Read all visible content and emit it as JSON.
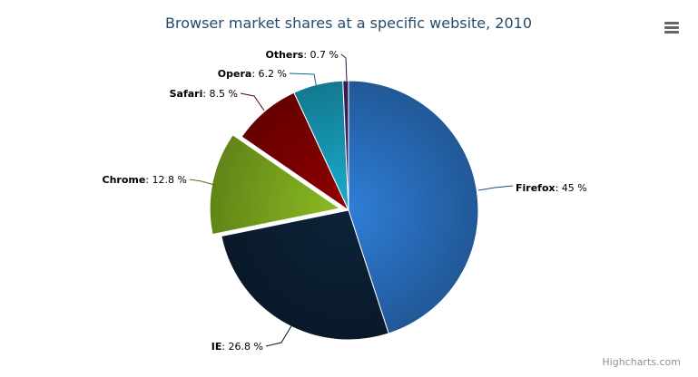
{
  "chart_data": {
    "type": "pie",
    "title": "Browser market shares at a specific website, 2010",
    "series": [
      {
        "name": "Firefox",
        "value": 45,
        "label": "45 %",
        "color": "#2f7ed8",
        "sliced": false
      },
      {
        "name": "IE",
        "value": 26.8,
        "label": "26.8 %",
        "color": "#0d233a",
        "sliced": false
      },
      {
        "name": "Chrome",
        "value": 12.8,
        "label": "12.8 %",
        "color": "#8bbc21",
        "sliced": true
      },
      {
        "name": "Safari",
        "value": 8.5,
        "label": "8.5 %",
        "color": "#910000",
        "sliced": false
      },
      {
        "name": "Opera",
        "value": 6.2,
        "label": "6.2 %",
        "color": "#1aadce",
        "sliced": false
      },
      {
        "name": "Others",
        "value": 0.7,
        "label": "0.7 %",
        "color": "#492970",
        "sliced": false
      }
    ]
  },
  "credits": "Highcharts.com",
  "menu_icon": "hamburger-menu-icon"
}
